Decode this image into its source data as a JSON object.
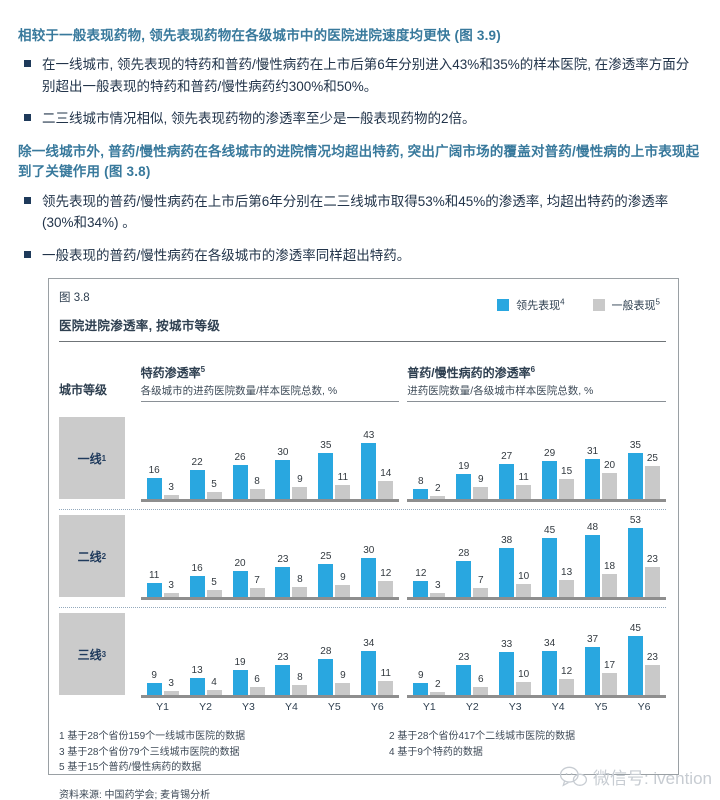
{
  "sections": [
    {
      "heading": "相较于一般表现药物, 领先表现药物在各级城市中的医院进院速度均更快 (图 3.9)",
      "bullets": [
        "在一线城市, 领先表现的特药和普药/慢性病药在上市后第6年分别进入43%和35%的样本医院, 在渗透率方面分别超出一般表现的特药和普药/慢性病药约300%和50%。",
        "二三线城市情况相似, 领先表现药物的渗透率至少是一般表现药物的2倍。"
      ]
    },
    {
      "heading": "除一线城市外, 普药/慢性病药在各线城市的进院情况均超出特药, 突出广阔市场的覆盖对普药/慢性病的上市表现起到了关键作用 (图 3.8)",
      "bullets": [
        "领先表现的普药/慢性病药在上市后第6年分别在二三线城市取得53%和45%的渗透率, 均超出特药的渗透率 (30%和34%) 。",
        "一般表现的普药/慢性病药在各级城市的渗透率同样超出特药。"
      ]
    }
  ],
  "figure": {
    "label": "图 3.8",
    "title": "医院进院渗透率, 按城市等级",
    "row_header": "城市等级",
    "legend": [
      {
        "label": "领先表现",
        "sup": "4",
        "color": "#29A7E0"
      },
      {
        "label": "一般表现",
        "sup": "5",
        "color": "#C9C9C9"
      }
    ],
    "columns": [
      {
        "title": "特药渗透率",
        "sup": "5",
        "subtitle": "各级城市的进药医院数量/样本医院总数, %"
      },
      {
        "title": "普药/慢性病药的渗透率",
        "sup": "6",
        "subtitle": "进药医院数量/各级城市样本医院总数, %"
      }
    ],
    "footnotes": [
      "1 基于28个省份159个一线城市医院的数据",
      "2 基于28个省份417个二线城市医院的数据",
      "3 基于28个省份79个三线城市医院的数据",
      "4 基于9个特药的数据",
      "5 基于15个普药/慢性病药的数据"
    ],
    "source": "资料来源: 中国药学会; 麦肯锡分析"
  },
  "chart_data": {
    "type": "bar",
    "x": [
      "Y1",
      "Y2",
      "Y3",
      "Y4",
      "Y5",
      "Y6"
    ],
    "unit": "%",
    "legend_position": "top-right",
    "ylim": [
      0,
      55
    ],
    "colors": {
      "leading": "#29A7E0",
      "average": "#C9C9C9"
    },
    "rows": [
      {
        "tier": "一线",
        "sup": "1",
        "charts": [
          {
            "column": "特药渗透率",
            "series": [
              {
                "name": "领先表现",
                "values": [
                  16,
                  22,
                  26,
                  30,
                  35,
                  43
                ]
              },
              {
                "name": "一般表现",
                "values": [
                  3,
                  5,
                  8,
                  9,
                  11,
                  14
                ]
              }
            ]
          },
          {
            "column": "普药/慢性病药的渗透率",
            "series": [
              {
                "name": "领先表现",
                "values": [
                  8,
                  19,
                  27,
                  29,
                  31,
                  35
                ]
              },
              {
                "name": "一般表现",
                "values": [
                  2,
                  9,
                  11,
                  15,
                  20,
                  25
                ]
              }
            ]
          }
        ]
      },
      {
        "tier": "二线",
        "sup": "2",
        "charts": [
          {
            "column": "特药渗透率",
            "series": [
              {
                "name": "领先表现",
                "values": [
                  11,
                  16,
                  20,
                  23,
                  25,
                  30
                ]
              },
              {
                "name": "一般表现",
                "values": [
                  3,
                  5,
                  7,
                  8,
                  9,
                  12
                ]
              }
            ]
          },
          {
            "column": "普药/慢性病药的渗透率",
            "series": [
              {
                "name": "领先表现",
                "values": [
                  12,
                  28,
                  38,
                  45,
                  48,
                  53
                ]
              },
              {
                "name": "一般表现",
                "values": [
                  3,
                  7,
                  10,
                  13,
                  18,
                  23
                ]
              }
            ]
          }
        ]
      },
      {
        "tier": "三线",
        "sup": "3",
        "charts": [
          {
            "column": "特药渗透率",
            "series": [
              {
                "name": "领先表现",
                "values": [
                  9,
                  13,
                  19,
                  23,
                  28,
                  34
                ]
              },
              {
                "name": "一般表现",
                "values": [
                  3,
                  4,
                  6,
                  8,
                  9,
                  11
                ]
              }
            ]
          },
          {
            "column": "普药/慢性病药的渗透率",
            "series": [
              {
                "name": "领先表现",
                "values": [
                  9,
                  23,
                  33,
                  34,
                  37,
                  45
                ]
              },
              {
                "name": "一般表现",
                "values": [
                  2,
                  6,
                  10,
                  12,
                  17,
                  23
                ]
              }
            ]
          }
        ]
      }
    ]
  },
  "watermark": {
    "text": "微信号: ivention"
  }
}
